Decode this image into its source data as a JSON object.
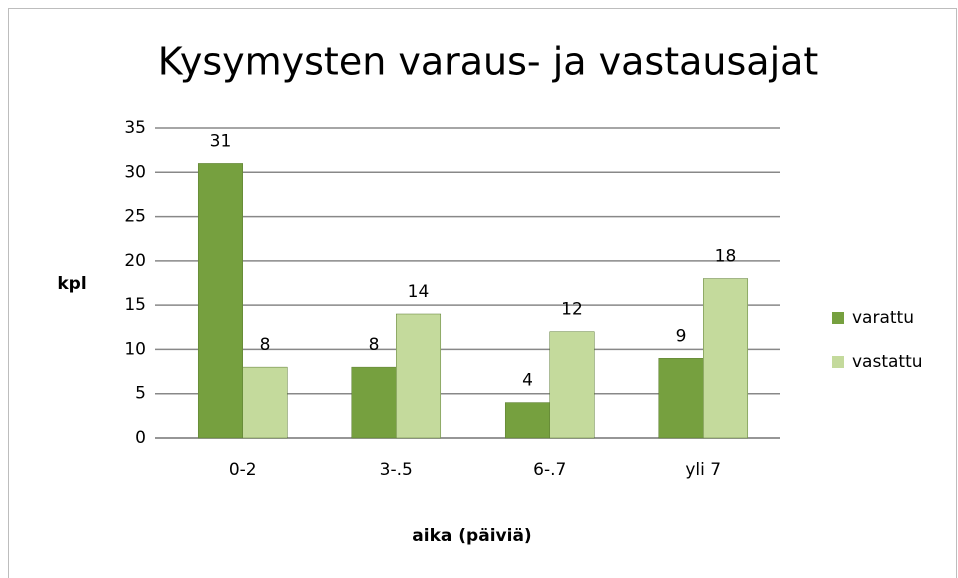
{
  "chart_data": {
    "type": "bar",
    "title": "Kysymysten varaus- ja vastausajat",
    "categories": [
      "0-2",
      "3-.5",
      "6-.7",
      "yli 7"
    ],
    "series": [
      {
        "name": "varattu",
        "color": "#76a03f",
        "values": [
          31,
          8,
          4,
          9
        ]
      },
      {
        "name": "vastattu",
        "color": "#c4da9c",
        "values": [
          8,
          14,
          12,
          18
        ]
      }
    ],
    "ylabel": "kpl",
    "xlabel": "aika (päiviä)",
    "ylim": [
      0,
      35
    ],
    "yticks": [
      0,
      5,
      10,
      15,
      20,
      25,
      30,
      35
    ],
    "grid": true,
    "legend": "right",
    "data_labels": true
  }
}
